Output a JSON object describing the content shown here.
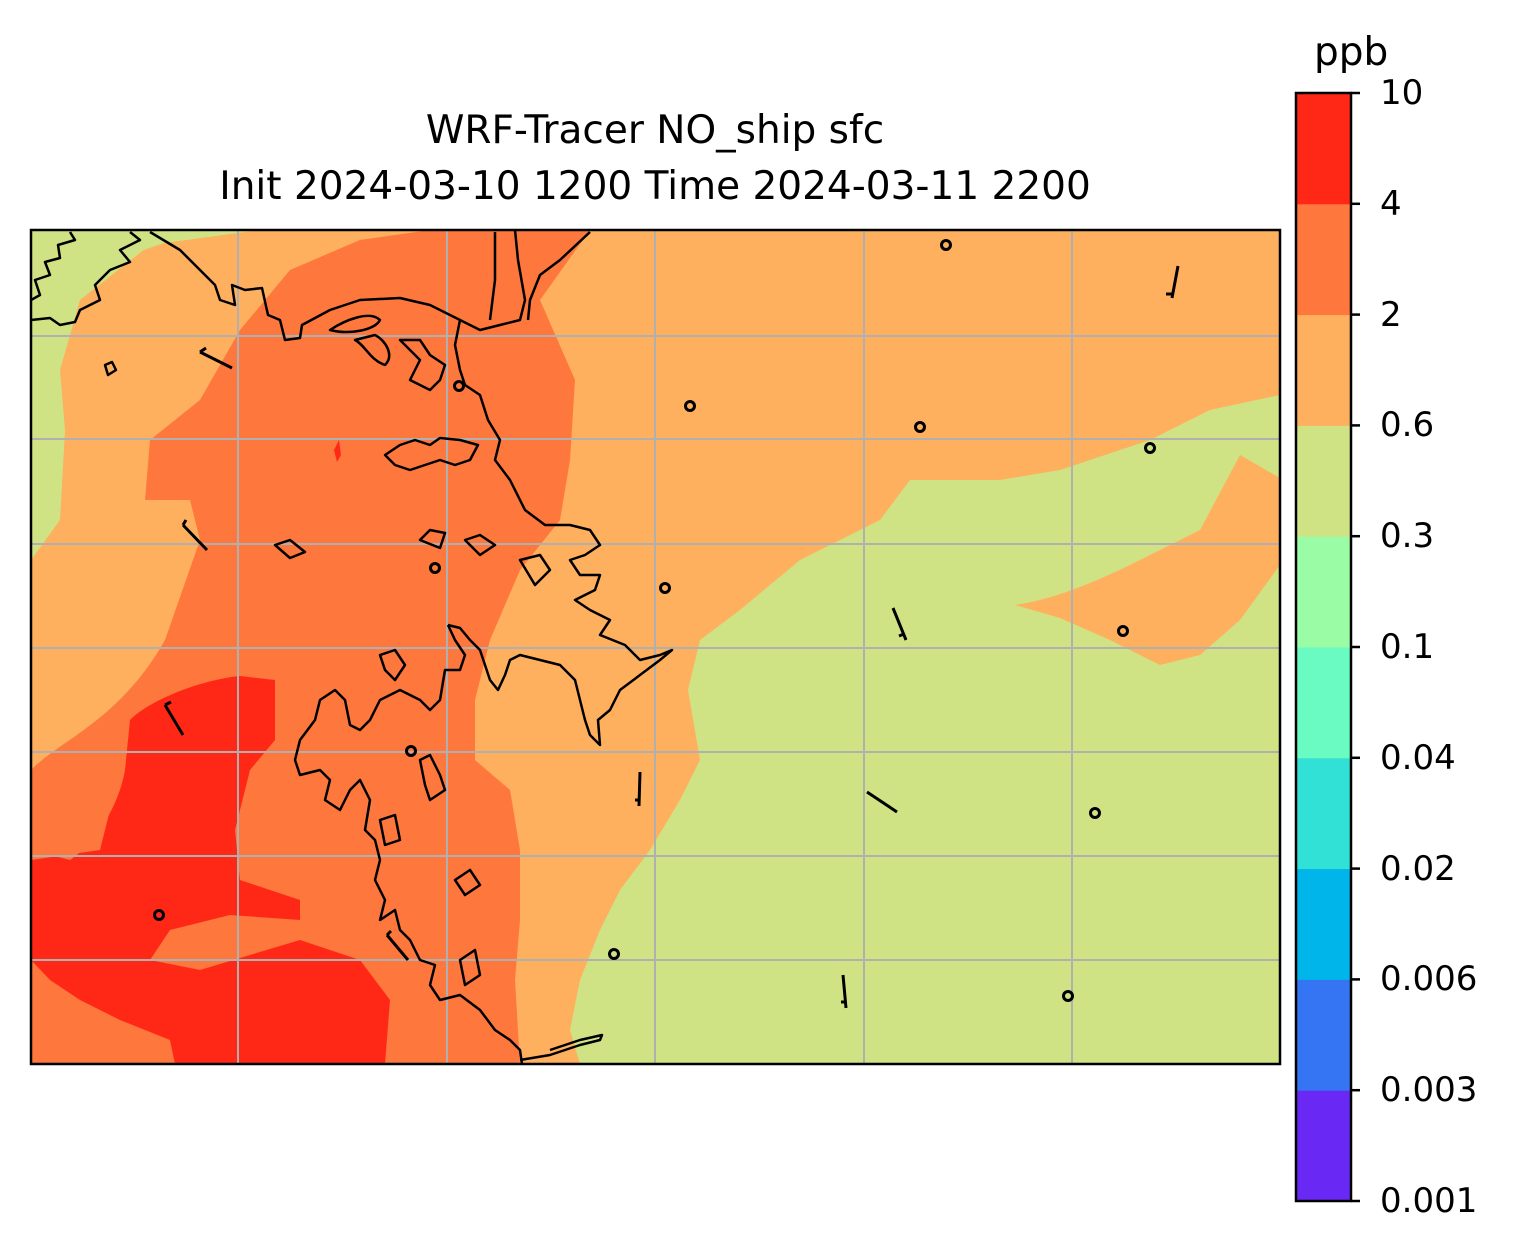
{
  "title": {
    "line1": "WRF-Tracer NO_ship sfc",
    "line2": "Init 2024-03-10 1200 Time 2024-03-11 2200"
  },
  "colorbar": {
    "unit": "ppb",
    "ticks": [
      "0.001",
      "0.003",
      "0.006",
      "0.02",
      "0.04",
      "0.1",
      "0.3",
      "0.6",
      "2",
      "4",
      "10"
    ],
    "colors": [
      "#6a28f5",
      "#3574f2",
      "#00b5ea",
      "#31e1d5",
      "#69fbc2",
      "#9afda6",
      "#cfe385",
      "#feb05f",
      "#fe773c",
      "#ff2817"
    ]
  },
  "map_fields": {
    "levels_shown": [
      "0.3",
      "0.6",
      "2",
      "4",
      "10"
    ],
    "background_level": "0.3",
    "grid": true,
    "coastlines": true,
    "wind_barbs": true,
    "calm_markers": true
  }
}
